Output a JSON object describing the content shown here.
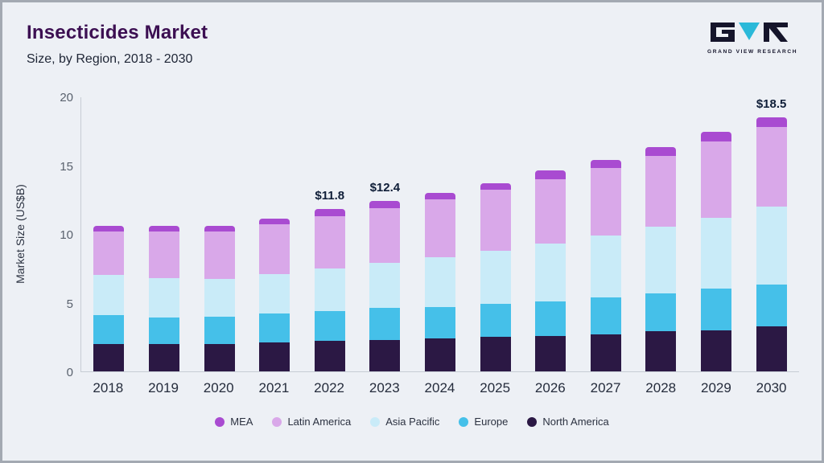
{
  "page": {
    "background": "#edf0f5",
    "frame_border": "#a3a9b2"
  },
  "header": {
    "title": "Insecticides Market",
    "subtitle": "Size, by Region, 2018 - 2030",
    "title_color": "#3c0f52"
  },
  "logo": {
    "brand": "GRAND VIEW RESEARCH",
    "accent_color": "#2bb9d9",
    "dark_color": "#15152b"
  },
  "chart_data": {
    "type": "bar",
    "stacked": true,
    "title": "Insecticides Market",
    "subtitle": "Size, by Region, 2018 - 2030",
    "xlabel": "",
    "ylabel": "Market Size (US$B)",
    "ylim": [
      0,
      20
    ],
    "yticks": [
      0,
      5,
      10,
      15,
      20
    ],
    "grid": false,
    "legend_position": "bottom",
    "categories": [
      "2018",
      "2019",
      "2020",
      "2021",
      "2022",
      "2023",
      "2024",
      "2025",
      "2026",
      "2027",
      "2028",
      "2029",
      "2030"
    ],
    "series": [
      {
        "name": "North America",
        "color": "#2b1844",
        "values": [
          2.0,
          2.0,
          2.0,
          2.1,
          2.2,
          2.3,
          2.4,
          2.5,
          2.6,
          2.7,
          2.9,
          3.0,
          3.3
        ]
      },
      {
        "name": "Europe",
        "color": "#45c0e9",
        "values": [
          2.1,
          1.9,
          2.0,
          2.1,
          2.2,
          2.3,
          2.3,
          2.4,
          2.5,
          2.7,
          2.8,
          3.0,
          3.0
        ]
      },
      {
        "name": "Asia Pacific",
        "color": "#c9ebf8",
        "values": [
          2.9,
          2.9,
          2.7,
          2.9,
          3.1,
          3.3,
          3.6,
          3.9,
          4.2,
          4.5,
          4.8,
          5.2,
          5.7
        ]
      },
      {
        "name": "Latin America",
        "color": "#d9a8e9",
        "values": [
          3.2,
          3.4,
          3.5,
          3.6,
          3.8,
          4.0,
          4.2,
          4.4,
          4.7,
          4.9,
          5.2,
          5.5,
          5.8
        ]
      },
      {
        "name": "MEA",
        "color": "#a94bd1",
        "values": [
          0.4,
          0.4,
          0.4,
          0.4,
          0.5,
          0.5,
          0.5,
          0.5,
          0.6,
          0.6,
          0.6,
          0.7,
          0.7
        ]
      }
    ],
    "totals": [
      10.6,
      10.6,
      10.6,
      11.1,
      11.8,
      12.4,
      13.0,
      13.7,
      14.6,
      15.4,
      16.3,
      17.4,
      18.5
    ],
    "annotations": [
      "",
      "",
      "",
      "",
      "$11.8",
      "$12.4",
      "",
      "",
      "",
      "",
      "",
      "",
      "$18.5"
    ],
    "legend": [
      "MEA",
      "Latin America",
      "Asia Pacific",
      "Europe",
      "North America"
    ]
  }
}
